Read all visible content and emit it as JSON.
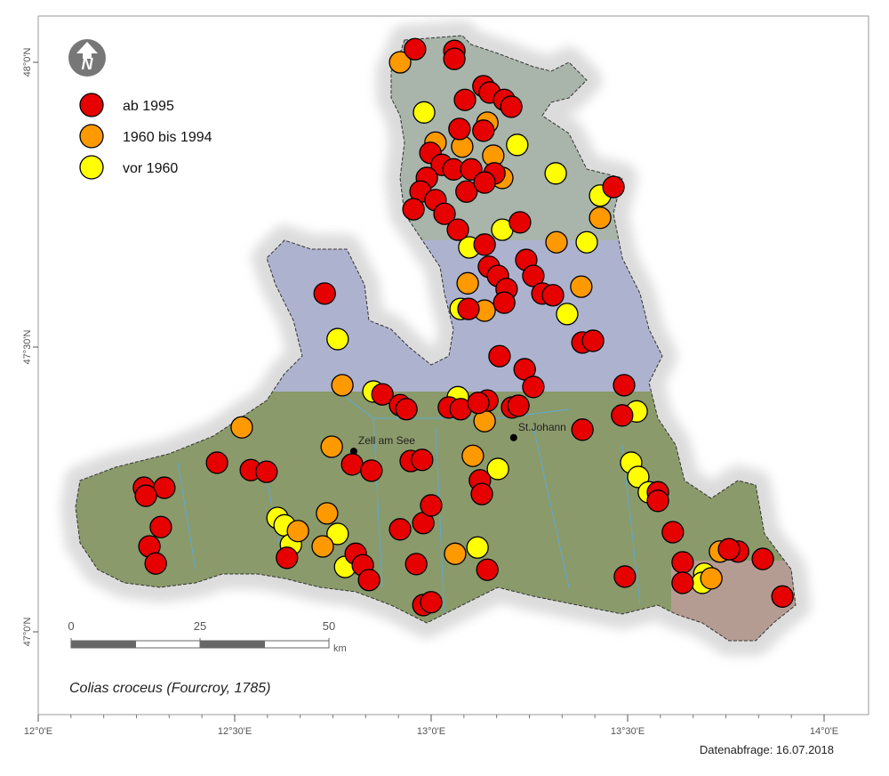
{
  "map": {
    "title": "Colias croceus (Fourcroy, 1785)",
    "footer": "Datenabfrage: 16.07.2018",
    "north_label": "N",
    "lon_ticks": [
      {
        "value": 12,
        "label": "12°0'E"
      },
      {
        "value": 12.5,
        "label": "12°30'E"
      },
      {
        "value": 13,
        "label": "13°0'E"
      },
      {
        "value": 13.5,
        "label": "13°30'E"
      },
      {
        "value": 14,
        "label": "14°0'E"
      }
    ],
    "lat_ticks": [
      {
        "value": 47,
        "label": "47°0'N"
      },
      {
        "value": 47.5,
        "label": "47°30'N"
      },
      {
        "value": 48,
        "label": "48°0'N"
      }
    ],
    "scalebar": {
      "ticks": [
        0,
        25,
        50
      ],
      "unit": "km"
    },
    "places": [
      {
        "name": "Zell am See",
        "lon": 12.803,
        "lat": 47.317
      },
      {
        "name": "St.Johann",
        "lon": 13.21,
        "lat": 47.341
      }
    ],
    "series": [
      {
        "name": "ab 1995",
        "color": "#e60000",
        "lon": [
          12.959,
          13.059,
          13.059,
          13.086,
          13.133,
          13.149,
          13.186,
          13.204,
          13.072,
          13.133,
          12.998,
          13.027,
          12.989,
          13.057,
          13.102,
          13.161,
          12.973,
          13.011,
          13.09,
          13.136,
          12.955,
          13.034,
          13.068,
          13.136,
          13.226,
          13.147,
          13.17,
          13.242,
          13.26,
          13.192,
          13.283,
          13.31,
          13.186,
          12.729,
          13.095,
          13.174,
          13.238,
          13.26,
          13.464,
          13.385,
          13.412,
          13.491,
          13.486,
          13.385,
          12.876,
          12.921,
          12.937,
          13.045,
          13.075,
          13.143,
          13.12,
          13.206,
          13.222,
          12.455,
          12.541,
          12.581,
          12.799,
          12.848,
          12.948,
          12.977,
          12.269,
          12.321,
          12.274,
          12.312,
          12.283,
          12.299,
          12.633,
          12.808,
          12.826,
          12.842,
          12.921,
          12.98,
          13.0,
          12.962,
          12.98,
          13.0,
          13.124,
          13.129,
          13.143,
          13.493,
          13.577,
          13.577,
          13.615,
          13.64,
          13.64,
          13.844,
          13.894,
          13.781,
          13.758
        ],
        "lat": [
          48.023,
          48.02,
          48.006,
          47.934,
          47.958,
          47.947,
          47.934,
          47.922,
          47.883,
          47.88,
          47.841,
          47.82,
          47.797,
          47.812,
          47.812,
          47.805,
          47.773,
          47.758,
          47.773,
          47.789,
          47.742,
          47.734,
          47.706,
          47.68,
          47.719,
          47.641,
          47.625,
          47.653,
          47.625,
          47.602,
          47.594,
          47.591,
          47.578,
          47.594,
          47.567,
          47.484,
          47.461,
          47.43,
          47.781,
          47.508,
          47.511,
          47.433,
          47.38,
          47.355,
          47.417,
          47.398,
          47.391,
          47.394,
          47.391,
          47.406,
          47.402,
          47.394,
          47.397,
          47.297,
          47.284,
          47.281,
          47.294,
          47.283,
          47.3,
          47.302,
          47.253,
          47.253,
          47.239,
          47.184,
          47.15,
          47.12,
          47.13,
          47.137,
          47.117,
          47.091,
          47.18,
          47.191,
          47.222,
          47.119,
          47.047,
          47.052,
          47.266,
          47.242,
          47.109,
          47.097,
          47.245,
          47.23,
          47.175,
          47.122,
          47.086,
          47.128,
          47.062,
          47.141,
          47.145
        ]
      },
      {
        "name": "1960 bis 1994",
        "color": "#ff9900",
        "lon": [
          12.921,
          13.011,
          13.079,
          13.143,
          13.158,
          13.181,
          13.093,
          13.136,
          13.319,
          13.382,
          13.43,
          12.774,
          12.518,
          12.747,
          13.136,
          13.106,
          12.735,
          12.724,
          12.661,
          13.061,
          13.735,
          13.713
        ],
        "lat": [
          48.0,
          47.859,
          47.852,
          47.894,
          47.836,
          47.797,
          47.612,
          47.564,
          47.684,
          47.606,
          47.727,
          47.433,
          47.359,
          47.325,
          47.37,
          47.309,
          47.208,
          47.15,
          47.177,
          47.137,
          47.141,
          47.094
        ]
      },
      {
        "name": "vor 1960",
        "color": "#ffff00",
        "lon": [
          12.982,
          13.219,
          13.317,
          13.396,
          13.43,
          13.097,
          13.181,
          13.075,
          13.346,
          12.762,
          12.853,
          13.068,
          13.523,
          13.17,
          13.509,
          13.527,
          13.554,
          12.609,
          12.627,
          12.643,
          12.762,
          12.781,
          13.118,
          13.695,
          13.69
        ],
        "lat": [
          47.912,
          47.855,
          47.805,
          47.684,
          47.766,
          47.675,
          47.706,
          47.567,
          47.558,
          47.514,
          47.422,
          47.412,
          47.387,
          47.286,
          47.297,
          47.272,
          47.245,
          47.2,
          47.187,
          47.153,
          47.172,
          47.114,
          47.148,
          47.102,
          47.086
        ]
      }
    ]
  }
}
